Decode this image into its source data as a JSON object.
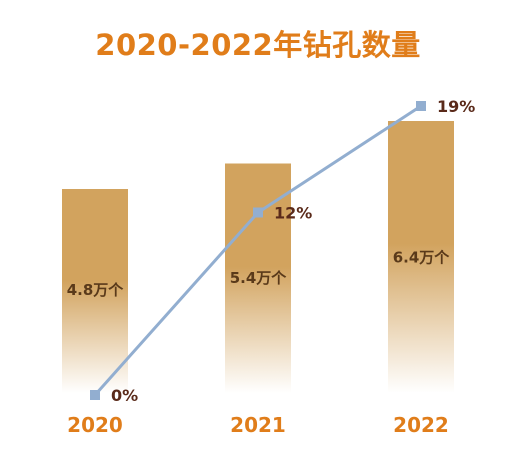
{
  "chart_data": {
    "type": "bar",
    "title": "2020-2022年钻孔数量",
    "categories": [
      "2020",
      "2021",
      "2022"
    ],
    "series": [
      {
        "values": [
          4.8,
          5.4,
          6.4
        ],
        "labels": [
          "4.8万个",
          "5.4万个",
          "6.4万个"
        ]
      },
      {
        "type": "line",
        "values": [
          0,
          12,
          19
        ],
        "labels": [
          "0%",
          "12%",
          "19%"
        ]
      }
    ],
    "grid": false
  },
  "colors": {
    "title": "#e07d1a",
    "bar": "#d2a35e",
    "bar_fade": "#ffffff",
    "bar_label": "#5a3a1a",
    "line": "#92aed0",
    "line_label": "#5a2a1a",
    "category_label": "#e07d1a"
  }
}
